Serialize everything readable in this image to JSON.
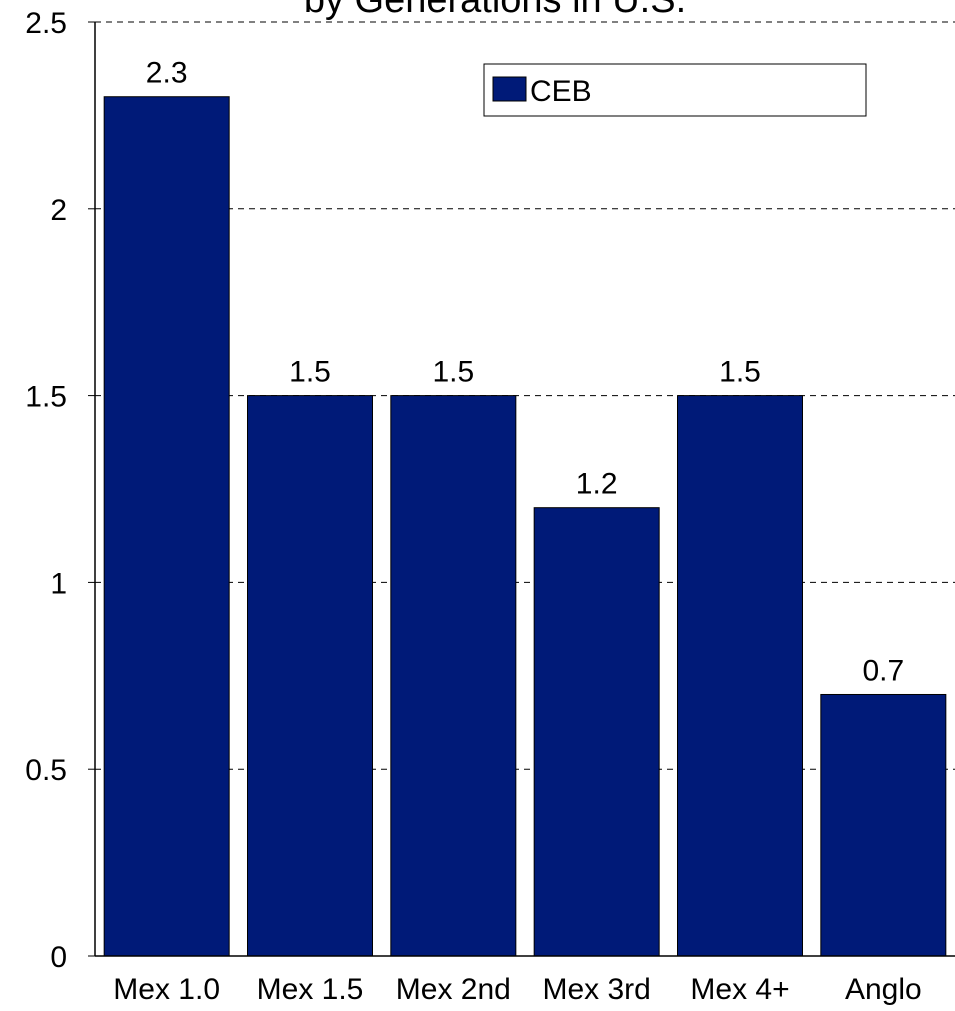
{
  "chart_data": {
    "type": "bar",
    "title": "by Generations in U.S.",
    "categories": [
      "Mex 1.0",
      "Mex 1.5",
      "Mex 2nd",
      "Mex 3rd",
      "Mex 4+",
      "Anglo"
    ],
    "series": [
      {
        "name": "CEB",
        "values": [
          2.3,
          1.5,
          1.5,
          1.2,
          1.5,
          0.7
        ],
        "color": "#001a78"
      }
    ],
    "data_labels": [
      "2.3",
      "1.5",
      "1.5",
      "1.2",
      "1.5",
      "0.7"
    ],
    "yticks": [
      {
        "value": 0,
        "label": "0"
      },
      {
        "value": 0.5,
        "label": "0.5"
      },
      {
        "value": 1,
        "label": "1"
      },
      {
        "value": 1.5,
        "label": "1.5"
      },
      {
        "value": 2,
        "label": "2"
      },
      {
        "value": 2.5,
        "label": "2.5"
      }
    ],
    "ylim": [
      0,
      2.5
    ],
    "xlabel": "",
    "ylabel": "",
    "grid": "horizontal-dashed",
    "legend_position": "top-right"
  }
}
